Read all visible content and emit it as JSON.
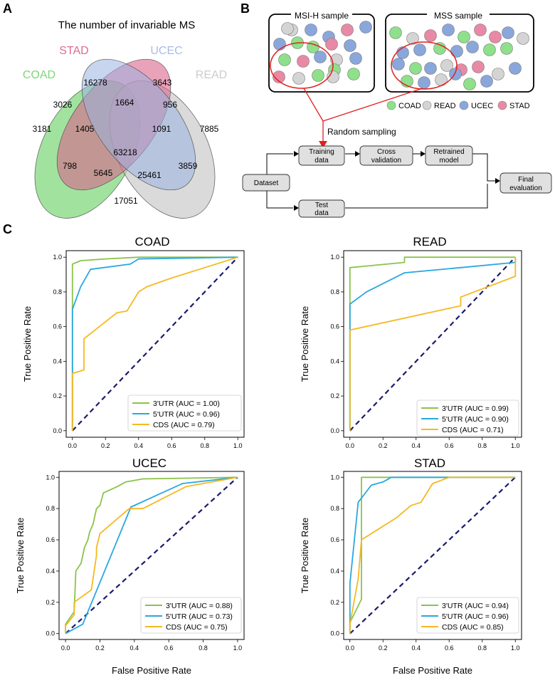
{
  "panels": {
    "A": "A",
    "B": "B",
    "C": "C"
  },
  "venn": {
    "title": "The number of invariable MS",
    "sets": [
      {
        "name": "COAD",
        "color": "#79d876"
      },
      {
        "name": "STAD",
        "color": "#e0779b"
      },
      {
        "name": "UCEC",
        "color": "#9db5e0"
      },
      {
        "name": "READ",
        "color": "#c8c8c8"
      }
    ],
    "region_counts": {
      "stad_only": "16278",
      "ucec_only": "3643",
      "coad_only": "3181",
      "read_only": "7885",
      "coad_stad": "3026",
      "stad_ucec": "1664",
      "ucec_read": "956",
      "coad_stad_ucec": "1405",
      "stad_ucec_read": "1091",
      "all": "63218",
      "coad_ucec": "798",
      "stad_read": "3859",
      "coad_ucec_read": "5645",
      "coad_stad_read": "25461",
      "coad_read": "17051"
    }
  },
  "workflow": {
    "msih_title": "MSI-H sample",
    "mss_title": "MSS sample",
    "legend": [
      {
        "name": "COAD",
        "color": "#8fe08a"
      },
      {
        "name": "READ",
        "color": "#d4d4d4"
      },
      {
        "name": "UCEC",
        "color": "#8aa7dc"
      },
      {
        "name": "STAD",
        "color": "#e88aa6"
      }
    ],
    "random_sampling": "Random sampling",
    "boxes": {
      "training": [
        "Training",
        "data"
      ],
      "cross": [
        "Cross",
        "validation"
      ],
      "retrained": [
        "Retrained",
        "model"
      ],
      "dataset": "Dataset",
      "test": [
        "Test",
        "data"
      ],
      "final": [
        "Final",
        "evaluation"
      ]
    }
  },
  "chart_data": [
    {
      "type": "line",
      "title": "COAD",
      "xlabel": "",
      "ylabel": "True Positive Rate",
      "xlim": [
        0,
        1
      ],
      "ylim": [
        0,
        1
      ],
      "xticks": [
        "0.0",
        "0.2",
        "0.4",
        "0.6",
        "0.8",
        "1.0"
      ],
      "yticks": [
        "0.0",
        "0.2",
        "0.4",
        "0.6",
        "0.8",
        "1.0"
      ],
      "series": [
        {
          "name": "3'UTR (AUC = 1.00)",
          "color": "#8bc34a",
          "points": [
            [
              0,
              0
            ],
            [
              0,
              0.96
            ],
            [
              0.05,
              0.98
            ],
            [
              0.2,
              0.99
            ],
            [
              0.4,
              1.0
            ],
            [
              1,
              1
            ]
          ]
        },
        {
          "name": "5'UTR (AUC = 0.96)",
          "color": "#29a8e0",
          "points": [
            [
              0,
              0
            ],
            [
              0,
              0.7
            ],
            [
              0.05,
              0.83
            ],
            [
              0.11,
              0.93
            ],
            [
              0.35,
              0.96
            ],
            [
              0.4,
              0.99
            ],
            [
              1,
              1
            ]
          ]
        },
        {
          "name": "CDS (AUC = 0.79)",
          "color": "#f5b921",
          "points": [
            [
              0,
              0
            ],
            [
              0,
              0.33
            ],
            [
              0.07,
              0.35
            ],
            [
              0.07,
              0.53
            ],
            [
              0.27,
              0.68
            ],
            [
              0.33,
              0.69
            ],
            [
              0.4,
              0.8
            ],
            [
              0.45,
              0.83
            ],
            [
              0.6,
              0.88
            ],
            [
              0.8,
              0.94
            ],
            [
              1,
              1
            ]
          ]
        }
      ],
      "diagonal_color": "#1a1a6e"
    },
    {
      "type": "line",
      "title": "READ",
      "xlabel": "",
      "ylabel": "True Positive Rate",
      "xlim": [
        0,
        1
      ],
      "ylim": [
        0,
        1
      ],
      "xticks": [
        "0.0",
        "0.2",
        "0.4",
        "0.6",
        "0.8",
        "1.0"
      ],
      "yticks": [
        "0.0",
        "0.2",
        "0.4",
        "0.6",
        "0.8",
        "1.0"
      ],
      "series": [
        {
          "name": "3'UTR (AUC = 0.99)",
          "color": "#8bc34a",
          "points": [
            [
              0,
              0
            ],
            [
              0,
              0.94
            ],
            [
              0.33,
              0.97
            ],
            [
              0.33,
              1.0
            ],
            [
              1,
              1
            ]
          ]
        },
        {
          "name": "5'UTR (AUC = 0.90)",
          "color": "#29a8e0",
          "points": [
            [
              0,
              0
            ],
            [
              0,
              0.73
            ],
            [
              0.1,
              0.8
            ],
            [
              0.33,
              0.91
            ],
            [
              0.67,
              0.94
            ],
            [
              1,
              0.97
            ],
            [
              1,
              1
            ]
          ]
        },
        {
          "name": "CDS (AUC = 0.71)",
          "color": "#f5b921",
          "points": [
            [
              0,
              0
            ],
            [
              0,
              0.58
            ],
            [
              0.67,
              0.72
            ],
            [
              0.67,
              0.77
            ],
            [
              1,
              0.89
            ],
            [
              1,
              1
            ]
          ]
        }
      ],
      "diagonal_color": "#1a1a6e"
    },
    {
      "type": "line",
      "title": "UCEC",
      "xlabel": "False Positive Rate",
      "ylabel": "True Positive Rate",
      "xlim": [
        0,
        1
      ],
      "ylim": [
        0,
        1
      ],
      "xticks": [
        "0.0",
        "0.2",
        "0.4",
        "0.6",
        "0.8",
        "1.0"
      ],
      "yticks": [
        "0.0",
        "0.2",
        "0.4",
        "0.6",
        "0.8",
        "1.0"
      ],
      "series": [
        {
          "name": "3'UTR (AUC = 0.88)",
          "color": "#8bc34a",
          "points": [
            [
              0,
              0
            ],
            [
              0,
              0.06
            ],
            [
              0.05,
              0.14
            ],
            [
              0.06,
              0.4
            ],
            [
              0.09,
              0.45
            ],
            [
              0.1,
              0.5
            ],
            [
              0.11,
              0.55
            ],
            [
              0.13,
              0.6
            ],
            [
              0.14,
              0.65
            ],
            [
              0.16,
              0.7
            ],
            [
              0.18,
              0.8
            ],
            [
              0.2,
              0.82
            ],
            [
              0.22,
              0.9
            ],
            [
              0.3,
              0.94
            ],
            [
              0.35,
              0.97
            ],
            [
              0.45,
              0.99
            ],
            [
              1,
              1
            ]
          ]
        },
        {
          "name": "5'UTR (AUC = 0.73)",
          "color": "#29a8e0",
          "points": [
            [
              0,
              0
            ],
            [
              0.1,
              0.06
            ],
            [
              0.38,
              0.81
            ],
            [
              0.68,
              0.96
            ],
            [
              1,
              1
            ]
          ]
        },
        {
          "name": "CDS (AUC = 0.75)",
          "color": "#f5b921",
          "points": [
            [
              0,
              0
            ],
            [
              0,
              0.05
            ],
            [
              0.05,
              0.12
            ],
            [
              0.05,
              0.2
            ],
            [
              0.15,
              0.28
            ],
            [
              0.18,
              0.5
            ],
            [
              0.18,
              0.55
            ],
            [
              0.2,
              0.64
            ],
            [
              0.37,
              0.8
            ],
            [
              0.45,
              0.8
            ],
            [
              0.7,
              0.94
            ],
            [
              1,
              1
            ]
          ]
        }
      ],
      "diagonal_color": "#1a1a6e"
    },
    {
      "type": "line",
      "title": "STAD",
      "xlabel": "False Positive Rate",
      "ylabel": "True Positive Rate",
      "xlim": [
        0,
        1
      ],
      "ylim": [
        0,
        1
      ],
      "xticks": [
        "0.0",
        "0.2",
        "0.4",
        "0.6",
        "0.8",
        "1.0"
      ],
      "yticks": [
        "0.0",
        "0.2",
        "0.4",
        "0.6",
        "0.8",
        "1.0"
      ],
      "series": [
        {
          "name": "3'UTR (AUC = 0.94)",
          "color": "#8bc34a",
          "points": [
            [
              0,
              0
            ],
            [
              0,
              0.07
            ],
            [
              0.07,
              0.22
            ],
            [
              0.07,
              1.0
            ],
            [
              1,
              1
            ]
          ]
        },
        {
          "name": "5'UTR (AUC = 0.96)",
          "color": "#29a8e0",
          "points": [
            [
              0,
              0
            ],
            [
              0,
              0.32
            ],
            [
              0.05,
              0.84
            ],
            [
              0.13,
              0.95
            ],
            [
              0.2,
              0.97
            ],
            [
              0.25,
              1.0
            ],
            [
              1,
              1
            ]
          ]
        },
        {
          "name": "CDS (AUC = 0.85)",
          "color": "#f5b921",
          "points": [
            [
              0,
              0
            ],
            [
              0,
              0.06
            ],
            [
              0.05,
              0.35
            ],
            [
              0.07,
              0.6
            ],
            [
              0.28,
              0.74
            ],
            [
              0.37,
              0.82
            ],
            [
              0.43,
              0.84
            ],
            [
              0.5,
              0.96
            ],
            [
              0.6,
              1.0
            ],
            [
              1,
              1
            ]
          ]
        }
      ],
      "diagonal_color": "#1a1a6e"
    }
  ]
}
